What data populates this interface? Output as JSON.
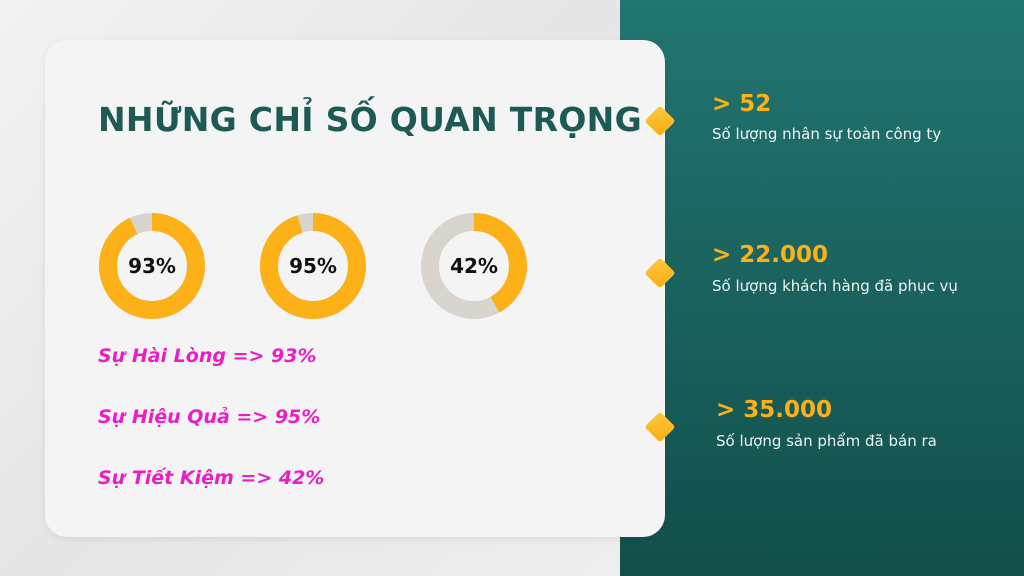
{
  "title": "NHỮNG CHỈ SỐ QUAN TRỌNG",
  "colors": {
    "accent": "#FBB117",
    "track": "#D9D5CE",
    "title": "#1D5A55",
    "label": "#E91EC9",
    "panel": "#1A625E"
  },
  "chart_data": {
    "type": "pie",
    "variant": "donut",
    "charts": [
      {
        "value": 93,
        "label": "93%"
      },
      {
        "value": 95,
        "label": "95%"
      },
      {
        "value": 42,
        "label": "42%"
      }
    ]
  },
  "labels": [
    "Sự Hài Lòng => 93%",
    "Sự Hiệu Quả => 95%",
    "Sự Tiết Kiệm => 42%"
  ],
  "stats": [
    {
      "value": "> 52",
      "desc": "Số lượng nhân sự toàn công ty"
    },
    {
      "value": "> 22.000",
      "desc": "Số lượng khách hàng đã phục vụ"
    },
    {
      "value": "> 35.000",
      "desc": "Số lượng sản phẩm đã bán ra"
    }
  ]
}
